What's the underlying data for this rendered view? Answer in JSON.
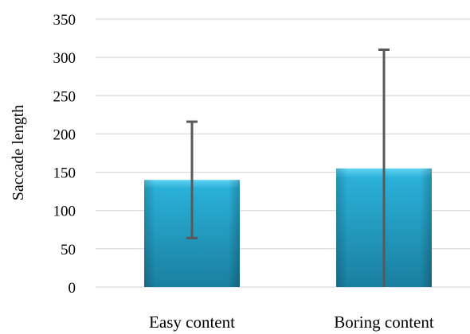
{
  "chart_data": {
    "type": "bar",
    "title": "",
    "xlabel": "",
    "ylabel": "Saccade length",
    "categories": [
      "Easy content",
      "Boring content"
    ],
    "values": [
      140,
      155
    ],
    "error_bars": [
      {
        "low": 64,
        "high": 216
      },
      {
        "low": 0,
        "high": 310
      }
    ],
    "ylim": [
      0,
      350
    ],
    "yticks": [
      0,
      50,
      100,
      150,
      200,
      250,
      300,
      350
    ],
    "ytick_labels": [
      "0",
      "50",
      "100",
      "150",
      "200",
      "250",
      "300",
      "350"
    ],
    "grid": true,
    "legend": "none",
    "colors": {
      "bar_light": "#5fd3f3",
      "bar_mid": "#2ab0d8",
      "bar_dark": "#1a7fa0",
      "error_bar": "#595959",
      "grid": "#d9d9d9"
    }
  }
}
